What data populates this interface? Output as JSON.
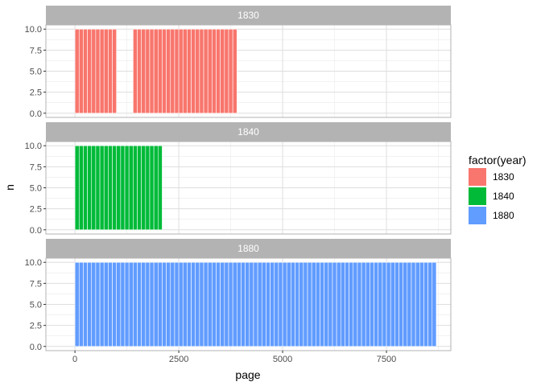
{
  "chart_data": {
    "type": "bar",
    "xlabel": "page",
    "ylabel": "n",
    "xlim": [
      -700,
      9050
    ],
    "ylim": [
      -0.5,
      10.5
    ],
    "x_ticks": [
      0,
      2500,
      5000,
      7500
    ],
    "x_tick_labels": [
      "0",
      "2500",
      "5000",
      "7500"
    ],
    "y_ticks": [
      0,
      2.5,
      5,
      7.5,
      10
    ],
    "y_tick_labels": [
      "0.0",
      "2.5",
      "5.0",
      "7.5",
      "10.0"
    ],
    "bin_width": 100,
    "grid": true,
    "legend": {
      "title": "factor(year)",
      "placement": "right",
      "entries": [
        {
          "label": "1830",
          "color": "#F8766D"
        },
        {
          "label": "1840",
          "color": "#00BA38"
        },
        {
          "label": "1880",
          "color": "#619CFF"
        }
      ]
    },
    "panels": [
      {
        "label": "1830",
        "color": "#F8766D",
        "bars": [
          {
            "x": 50,
            "n": 10
          },
          {
            "x": 150,
            "n": 10
          },
          {
            "x": 250,
            "n": 10
          },
          {
            "x": 350,
            "n": 10
          },
          {
            "x": 450,
            "n": 10
          },
          {
            "x": 550,
            "n": 10
          },
          {
            "x": 650,
            "n": 10
          },
          {
            "x": 750,
            "n": 10
          },
          {
            "x": 850,
            "n": 10
          },
          {
            "x": 950,
            "n": 10
          },
          {
            "x": 1450,
            "n": 10
          },
          {
            "x": 1550,
            "n": 10
          },
          {
            "x": 1650,
            "n": 10
          },
          {
            "x": 1750,
            "n": 10
          },
          {
            "x": 1850,
            "n": 10
          },
          {
            "x": 1950,
            "n": 10
          },
          {
            "x": 2050,
            "n": 10
          },
          {
            "x": 2150,
            "n": 10
          },
          {
            "x": 2250,
            "n": 10
          },
          {
            "x": 2350,
            "n": 10
          },
          {
            "x": 2450,
            "n": 10
          },
          {
            "x": 2550,
            "n": 10
          },
          {
            "x": 2650,
            "n": 10
          },
          {
            "x": 2750,
            "n": 10
          },
          {
            "x": 2850,
            "n": 10
          },
          {
            "x": 2950,
            "n": 10
          },
          {
            "x": 3050,
            "n": 10
          },
          {
            "x": 3150,
            "n": 10
          },
          {
            "x": 3250,
            "n": 10
          },
          {
            "x": 3350,
            "n": 10
          },
          {
            "x": 3450,
            "n": 10
          },
          {
            "x": 3550,
            "n": 10
          },
          {
            "x": 3650,
            "n": 10
          },
          {
            "x": 3750,
            "n": 10
          },
          {
            "x": 3850,
            "n": 10
          }
        ]
      },
      {
        "label": "1840",
        "color": "#00BA38",
        "bars": [
          {
            "x": 50,
            "n": 10
          },
          {
            "x": 150,
            "n": 10
          },
          {
            "x": 250,
            "n": 10
          },
          {
            "x": 350,
            "n": 10
          },
          {
            "x": 450,
            "n": 10
          },
          {
            "x": 550,
            "n": 10
          },
          {
            "x": 650,
            "n": 10
          },
          {
            "x": 750,
            "n": 10
          },
          {
            "x": 850,
            "n": 10
          },
          {
            "x": 950,
            "n": 10
          },
          {
            "x": 1050,
            "n": 10
          },
          {
            "x": 1150,
            "n": 10
          },
          {
            "x": 1250,
            "n": 10
          },
          {
            "x": 1350,
            "n": 10
          },
          {
            "x": 1450,
            "n": 10
          },
          {
            "x": 1550,
            "n": 10
          },
          {
            "x": 1650,
            "n": 10
          },
          {
            "x": 1750,
            "n": 10
          },
          {
            "x": 1850,
            "n": 10
          },
          {
            "x": 1950,
            "n": 10
          },
          {
            "x": 2050,
            "n": 10
          }
        ]
      },
      {
        "label": "1880",
        "color": "#619CFF",
        "bars": [
          {
            "x": 50,
            "n": 10
          },
          {
            "x": 150,
            "n": 10
          },
          {
            "x": 250,
            "n": 10
          },
          {
            "x": 350,
            "n": 10
          },
          {
            "x": 450,
            "n": 10
          },
          {
            "x": 550,
            "n": 10
          },
          {
            "x": 650,
            "n": 10
          },
          {
            "x": 750,
            "n": 10
          },
          {
            "x": 850,
            "n": 10
          },
          {
            "x": 950,
            "n": 10
          },
          {
            "x": 1050,
            "n": 10
          },
          {
            "x": 1150,
            "n": 10
          },
          {
            "x": 1250,
            "n": 10
          },
          {
            "x": 1350,
            "n": 10
          },
          {
            "x": 1450,
            "n": 10
          },
          {
            "x": 1550,
            "n": 10
          },
          {
            "x": 1650,
            "n": 10
          },
          {
            "x": 1750,
            "n": 10
          },
          {
            "x": 1850,
            "n": 10
          },
          {
            "x": 1950,
            "n": 10
          },
          {
            "x": 2050,
            "n": 10
          },
          {
            "x": 2150,
            "n": 10
          },
          {
            "x": 2250,
            "n": 10
          },
          {
            "x": 2350,
            "n": 10
          },
          {
            "x": 2450,
            "n": 10
          },
          {
            "x": 2550,
            "n": 10
          },
          {
            "x": 2650,
            "n": 10
          },
          {
            "x": 2750,
            "n": 10
          },
          {
            "x": 2850,
            "n": 10
          },
          {
            "x": 2950,
            "n": 10
          },
          {
            "x": 3050,
            "n": 10
          },
          {
            "x": 3150,
            "n": 10
          },
          {
            "x": 3250,
            "n": 10
          },
          {
            "x": 3350,
            "n": 10
          },
          {
            "x": 3450,
            "n": 10
          },
          {
            "x": 3550,
            "n": 10
          },
          {
            "x": 3650,
            "n": 10
          },
          {
            "x": 3750,
            "n": 10
          },
          {
            "x": 3850,
            "n": 10
          },
          {
            "x": 3950,
            "n": 10
          },
          {
            "x": 4050,
            "n": 10
          },
          {
            "x": 4150,
            "n": 10
          },
          {
            "x": 4250,
            "n": 10
          },
          {
            "x": 4350,
            "n": 10
          },
          {
            "x": 4450,
            "n": 10
          },
          {
            "x": 4550,
            "n": 10
          },
          {
            "x": 4650,
            "n": 10
          },
          {
            "x": 4750,
            "n": 10
          },
          {
            "x": 4850,
            "n": 10
          },
          {
            "x": 4950,
            "n": 10
          },
          {
            "x": 5050,
            "n": 10
          },
          {
            "x": 5150,
            "n": 10
          },
          {
            "x": 5250,
            "n": 10
          },
          {
            "x": 5350,
            "n": 10
          },
          {
            "x": 5450,
            "n": 10
          },
          {
            "x": 5550,
            "n": 10
          },
          {
            "x": 5650,
            "n": 10
          },
          {
            "x": 5750,
            "n": 10
          },
          {
            "x": 5850,
            "n": 10
          },
          {
            "x": 5950,
            "n": 10
          },
          {
            "x": 6050,
            "n": 10
          },
          {
            "x": 6150,
            "n": 10
          },
          {
            "x": 6250,
            "n": 10
          },
          {
            "x": 6350,
            "n": 10
          },
          {
            "x": 6450,
            "n": 10
          },
          {
            "x": 6550,
            "n": 10
          },
          {
            "x": 6650,
            "n": 10
          },
          {
            "x": 6750,
            "n": 10
          },
          {
            "x": 6850,
            "n": 10
          },
          {
            "x": 6950,
            "n": 10
          },
          {
            "x": 7050,
            "n": 10
          },
          {
            "x": 7150,
            "n": 10
          },
          {
            "x": 7250,
            "n": 10
          },
          {
            "x": 7350,
            "n": 10
          },
          {
            "x": 7450,
            "n": 10
          },
          {
            "x": 7550,
            "n": 10
          },
          {
            "x": 7650,
            "n": 10
          },
          {
            "x": 7750,
            "n": 10
          },
          {
            "x": 7850,
            "n": 10
          },
          {
            "x": 7950,
            "n": 10
          },
          {
            "x": 8050,
            "n": 10
          },
          {
            "x": 8150,
            "n": 10
          },
          {
            "x": 8250,
            "n": 10
          },
          {
            "x": 8350,
            "n": 10
          },
          {
            "x": 8450,
            "n": 10
          },
          {
            "x": 8550,
            "n": 10
          },
          {
            "x": 8650,
            "n": 10
          }
        ]
      }
    ]
  }
}
